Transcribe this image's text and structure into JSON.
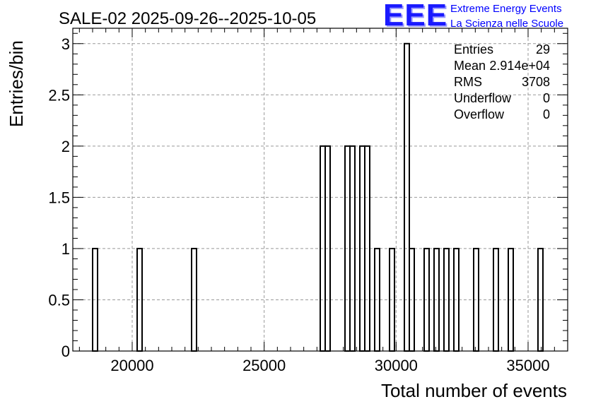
{
  "logo": {
    "mark": "EEE",
    "line1": "Extreme Energy Events",
    "line2": "La Scienza nelle Scuole"
  },
  "chart_data": {
    "type": "bar",
    "title": "SALE-02 2025-09-26--2025-10-05",
    "xlabel": "Total number of events",
    "ylabel": "Entries/bin",
    "xlim": [
      17750,
      36500
    ],
    "ylim": [
      0,
      3.15
    ],
    "x_ticks": [
      20000,
      25000,
      30000,
      35000
    ],
    "y_ticks": [
      0,
      0.5,
      1,
      1.5,
      2,
      2.5,
      3
    ],
    "y_tick_labels": [
      "0",
      "0.5",
      "1",
      "1.5",
      "2",
      "2.5",
      "3"
    ],
    "grid": true,
    "bin_width": 187.5,
    "bins": [
      {
        "x": 18500,
        "count": 1
      },
      {
        "x": 20187.5,
        "count": 1
      },
      {
        "x": 22250,
        "count": 1
      },
      {
        "x": 27125,
        "count": 2
      },
      {
        "x": 27312.5,
        "count": 2
      },
      {
        "x": 28062.5,
        "count": 2
      },
      {
        "x": 28250,
        "count": 2
      },
      {
        "x": 28625,
        "count": 2
      },
      {
        "x": 28812.5,
        "count": 2
      },
      {
        "x": 29187.5,
        "count": 1
      },
      {
        "x": 29750,
        "count": 1
      },
      {
        "x": 30312.5,
        "count": 3
      },
      {
        "x": 30500,
        "count": 1
      },
      {
        "x": 31062.5,
        "count": 1
      },
      {
        "x": 31437.5,
        "count": 1
      },
      {
        "x": 31812.5,
        "count": 1
      },
      {
        "x": 32187.5,
        "count": 1
      },
      {
        "x": 32937.5,
        "count": 1
      },
      {
        "x": 33687.5,
        "count": 1
      },
      {
        "x": 34250,
        "count": 1
      },
      {
        "x": 35375,
        "count": 1
      }
    ],
    "stats": [
      {
        "label": "Entries",
        "value": "29"
      },
      {
        "label": "Mean",
        "value": "2.914e+04"
      },
      {
        "label": "RMS",
        "value": "3708"
      },
      {
        "label": "Underflow",
        "value": "0"
      },
      {
        "label": "Overflow",
        "value": "0"
      }
    ]
  }
}
